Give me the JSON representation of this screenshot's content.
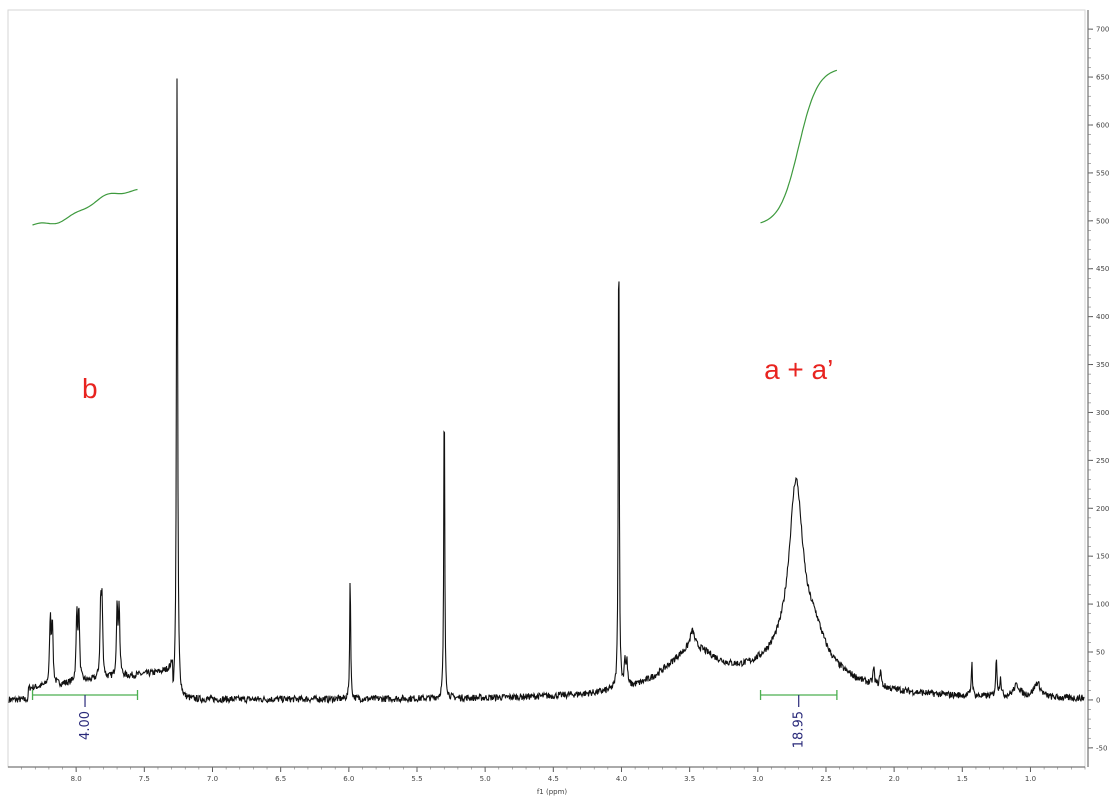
{
  "chart_data": {
    "type": "line",
    "title": "",
    "xlabel": "f1 (ppm)",
    "ylabel": "",
    "xlim": [
      8.5,
      0.6
    ],
    "ylim": [
      -70,
      720
    ],
    "x_reversed": true,
    "grid": false,
    "x_ticks": [
      "8.0",
      "7.5",
      "7.0",
      "6.5",
      "6.0",
      "5.5",
      "5.0",
      "4.5",
      "4.0",
      "3.5",
      "3.0",
      "2.5",
      "2.0",
      "1.5",
      "1.0"
    ],
    "x_tick_values": [
      8.0,
      7.5,
      7.0,
      6.5,
      6.0,
      5.5,
      5.0,
      4.5,
      4.0,
      3.5,
      3.0,
      2.5,
      2.0,
      1.5,
      1.0
    ],
    "y_ticks": [
      "-50",
      "0",
      "50",
      "100",
      "150",
      "200",
      "250",
      "300",
      "350",
      "400",
      "450",
      "500",
      "550",
      "600",
      "650",
      "700"
    ],
    "y_tick_values": [
      -50,
      0,
      50,
      100,
      150,
      200,
      250,
      300,
      350,
      400,
      450,
      500,
      550,
      600,
      650,
      700
    ],
    "peaks": [
      {
        "x": 8.19,
        "y": 68,
        "w": 0.006
      },
      {
        "x": 8.175,
        "y": 66,
        "w": 0.006
      },
      {
        "x": 7.995,
        "y": 70,
        "w": 0.006
      },
      {
        "x": 7.98,
        "y": 72,
        "w": 0.006
      },
      {
        "x": 7.82,
        "y": 74,
        "w": 0.006
      },
      {
        "x": 7.81,
        "y": 72,
        "w": 0.006
      },
      {
        "x": 7.7,
        "y": 70,
        "w": 0.006
      },
      {
        "x": 7.685,
        "y": 72,
        "w": 0.006
      },
      {
        "x": 7.26,
        "y": 648,
        "w": 0.005
      },
      {
        "x": 5.99,
        "y": 135,
        "w": 0.004
      },
      {
        "x": 5.3,
        "y": 335,
        "w": 0.004
      },
      {
        "x": 4.02,
        "y": 510,
        "w": 0.004
      },
      {
        "x": 3.975,
        "y": 28,
        "w": 0.006
      },
      {
        "x": 3.96,
        "y": 24,
        "w": 0.006
      },
      {
        "x": 2.72,
        "y": 175,
        "w": 0.06
      },
      {
        "x": 2.72,
        "y": 45,
        "w": 0.35
      },
      {
        "x": 3.48,
        "y": 45,
        "w": 0.25
      },
      {
        "x": 3.48,
        "y": 18,
        "w": 0.02
      },
      {
        "x": 2.58,
        "y": 25,
        "w": 0.08
      },
      {
        "x": 2.15,
        "y": 18,
        "w": 0.006
      },
      {
        "x": 2.1,
        "y": 18,
        "w": 0.006
      },
      {
        "x": 1.43,
        "y": 35,
        "w": 0.005
      },
      {
        "x": 1.25,
        "y": 38,
        "w": 0.006
      },
      {
        "x": 1.22,
        "y": 20,
        "w": 0.006
      },
      {
        "x": 1.1,
        "y": 12,
        "w": 0.03
      },
      {
        "x": 0.95,
        "y": 15,
        "w": 0.03
      }
    ],
    "baseline_tilt": {
      "from": 8.35,
      "to": 7.29,
      "start": 12,
      "end": 30
    },
    "integrals": [
      {
        "from": 8.32,
        "to": 7.55,
        "value": "4.00",
        "curve_start": 495,
        "curve_end": 532
      },
      {
        "from": 2.98,
        "to": 2.42,
        "value": "18.95",
        "curve_start": 495,
        "curve_end": 660
      }
    ],
    "annotations": [
      {
        "text": "b",
        "x": 7.9,
        "y": 315
      },
      {
        "text": "a + a’",
        "x": 2.7,
        "y": 335
      }
    ]
  }
}
